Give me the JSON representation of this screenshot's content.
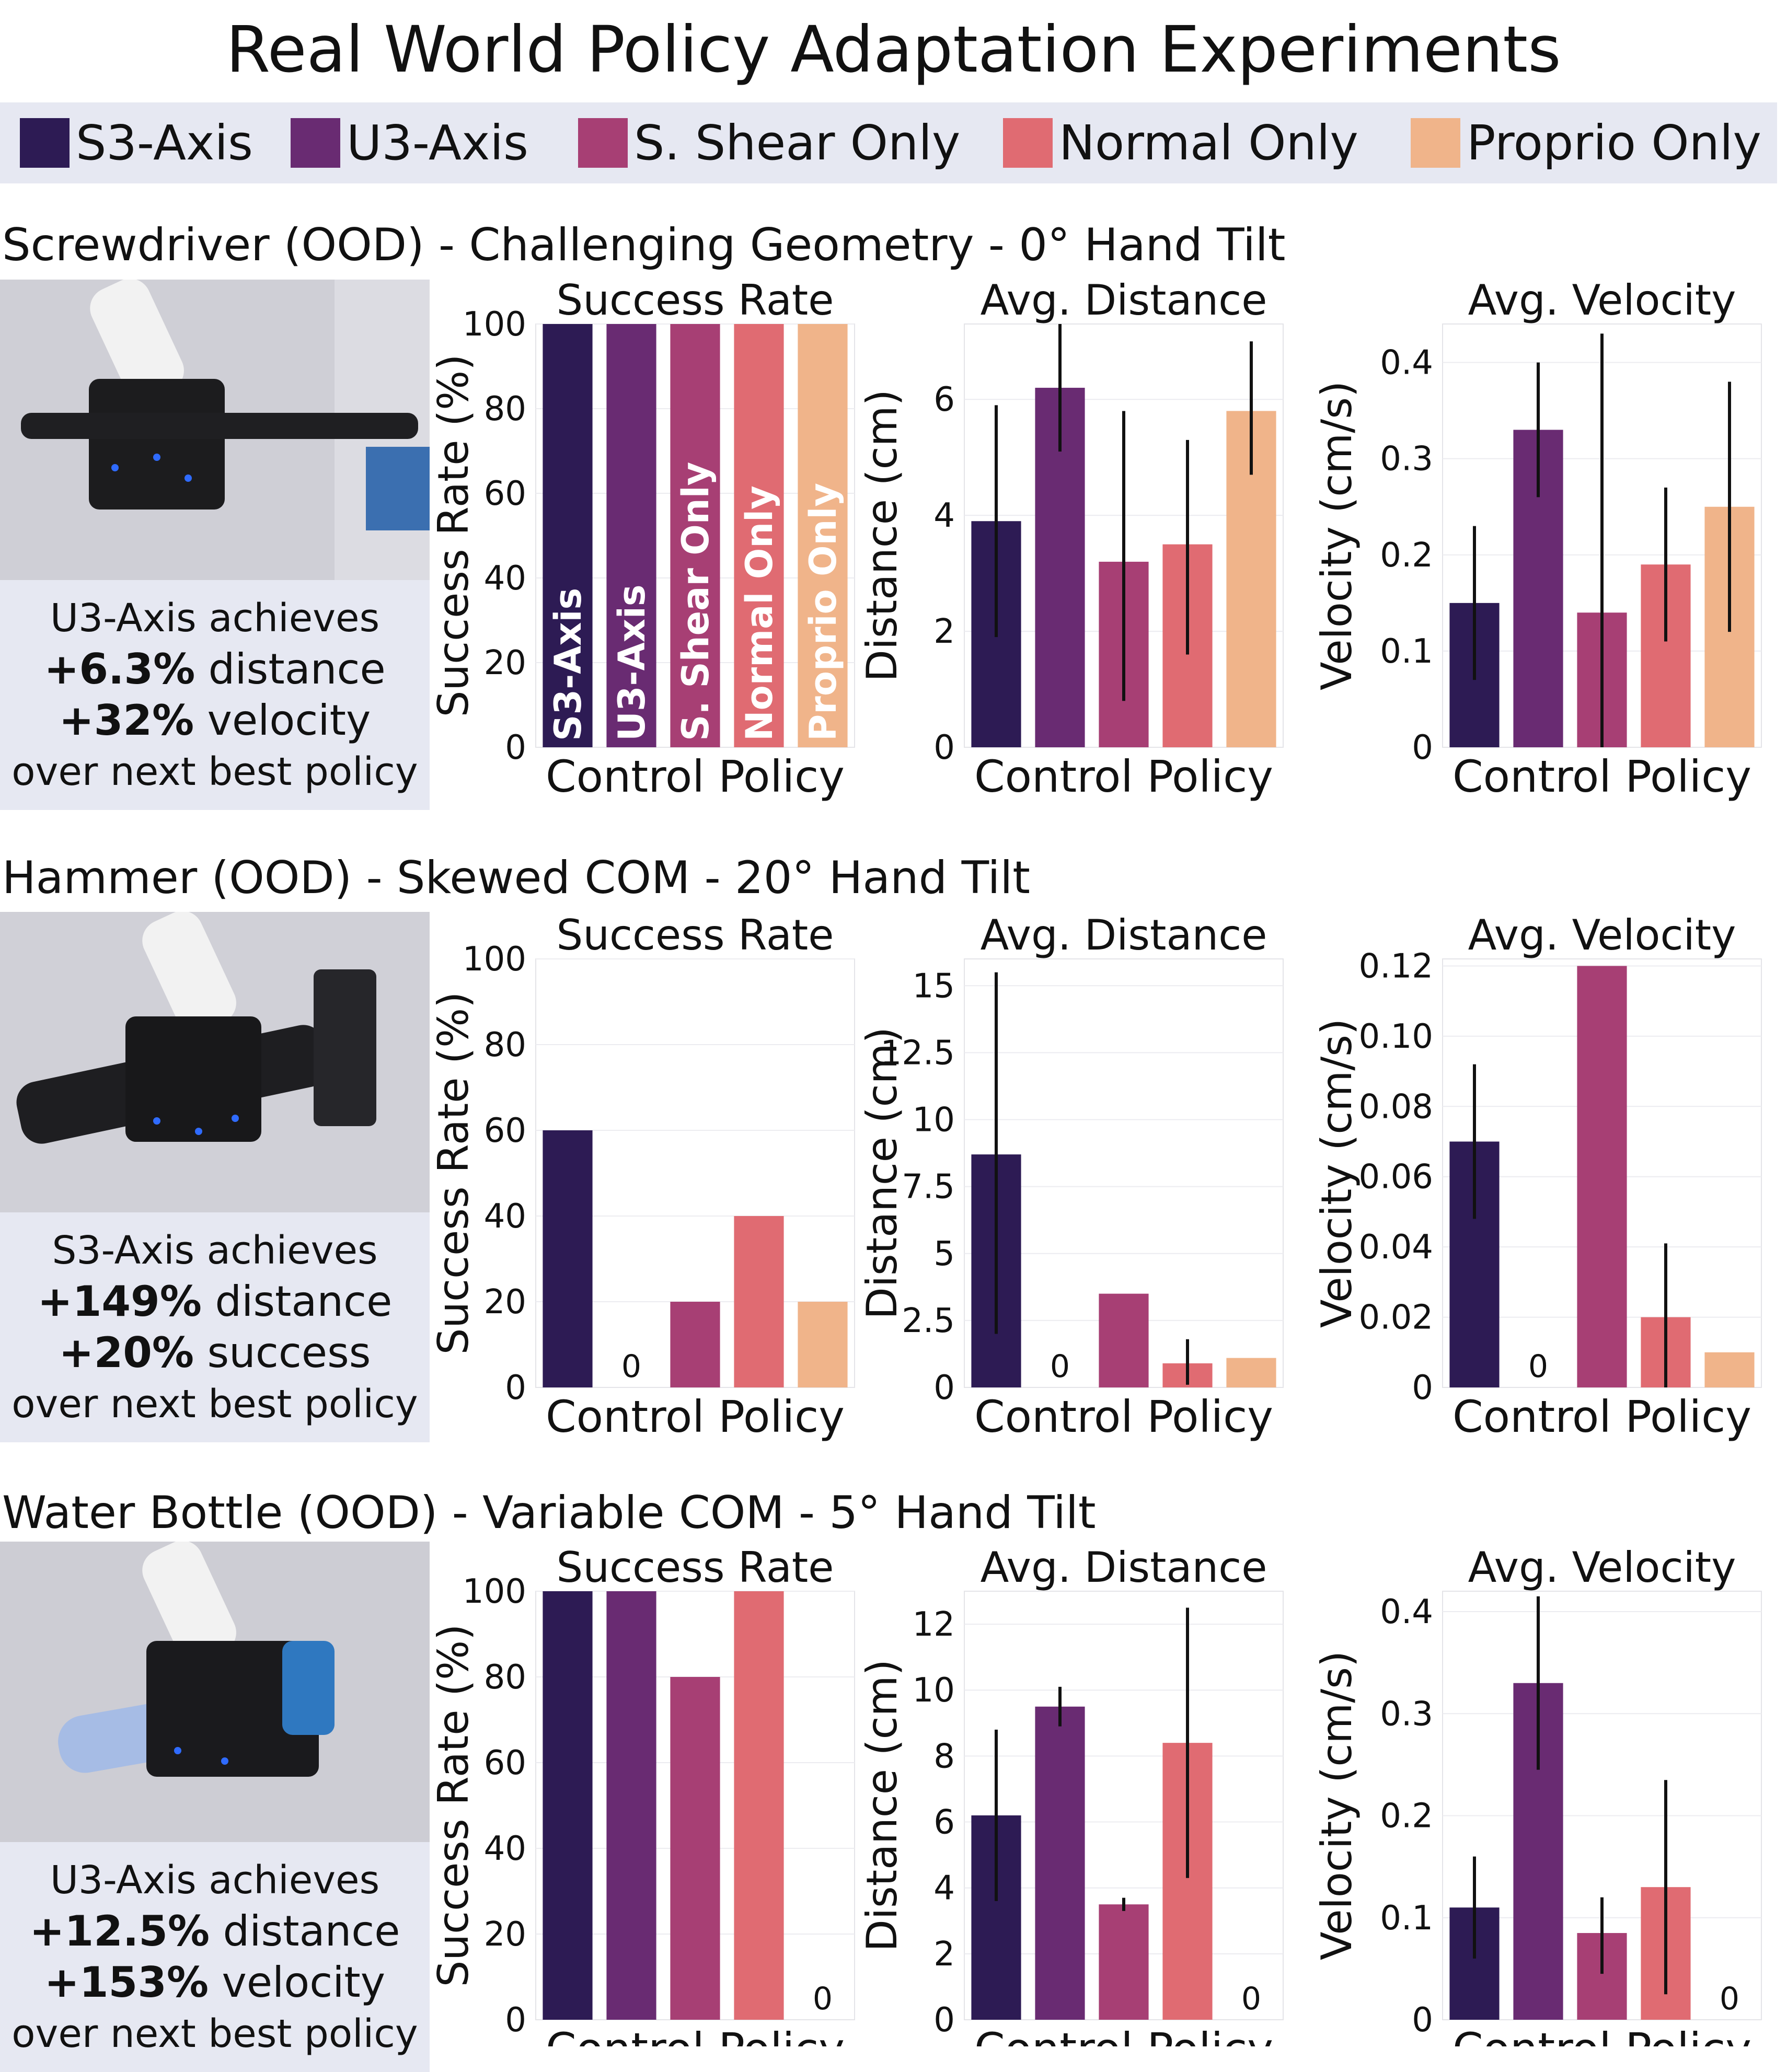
{
  "title": "Real World Policy Adaptation Experiments",
  "legend": [
    {
      "label": "S3-Axis",
      "color": "#2d1b54"
    },
    {
      "label": "U3-Axis",
      "color": "#692b72"
    },
    {
      "label": "S. Shear Only",
      "color": "#a73f74"
    },
    {
      "label": "Normal Only",
      "color": "#e06b72"
    },
    {
      "label": "Proprio Only",
      "color": "#f0b48a"
    }
  ],
  "sections": [
    {
      "title": "Screwdriver (OOD) - Challenging Geometry - 0° Hand Tilt",
      "caption": {
        "line1": "U3-Axis achieves",
        "line2_bold": "+6.3%",
        "line2_rest": "distance",
        "line3_bold": "+32%",
        "line3_rest": "velocity",
        "line4": "over next best policy"
      }
    },
    {
      "title": "Hammer (OOD) - Skewed COM - 20° Hand Tilt",
      "caption": {
        "line1": "S3-Axis achieves",
        "line2_bold": "+149%",
        "line2_rest": "distance",
        "line3_bold": "+20%",
        "line3_rest": "success",
        "line4": "over next best policy"
      }
    },
    {
      "title": "Water Bottle (OOD) - Variable COM - 5° Hand Tilt",
      "caption": {
        "line1": "U3-Axis achieves",
        "line2_bold": "+12.5%",
        "line2_rest": "distance",
        "line3_bold": "+153%",
        "line3_rest": "velocity",
        "line4": "over next best policy"
      }
    }
  ],
  "chart_data": [
    {
      "type": "bar",
      "title": "Success Rate",
      "xlabel": "Control Policy",
      "ylabel": "Success Rate (%)",
      "categories": [
        "S3-Axis",
        "U3-Axis",
        "S. Shear Only",
        "Normal Only",
        "Proprio Only"
      ],
      "values": [
        100,
        100,
        100,
        100,
        100
      ],
      "ylim": [
        0,
        100
      ],
      "ticks": [
        0,
        20,
        40,
        60,
        80,
        100
      ],
      "tick_labels": [
        "0",
        "20",
        "40",
        "60",
        "80",
        "100"
      ],
      "in_bar_labels": true
    },
    {
      "type": "bar",
      "title": "Avg. Distance",
      "xlabel": "Control Policy",
      "ylabel": "Distance (cm)",
      "categories": [
        "S3-Axis",
        "U3-Axis",
        "S. Shear Only",
        "Normal Only",
        "Proprio Only"
      ],
      "values": [
        3.9,
        6.2,
        3.2,
        3.5,
        5.8
      ],
      "error_low": [
        1.9,
        5.1,
        0.8,
        1.6,
        4.7
      ],
      "error_high": [
        5.9,
        7.3,
        5.8,
        5.3,
        7.0
      ],
      "ylim": [
        0,
        7.3
      ],
      "ticks": [
        0,
        2,
        4,
        6
      ],
      "tick_labels": [
        "0",
        "2",
        "4",
        "6"
      ]
    },
    {
      "type": "bar",
      "title": "Avg. Velocity",
      "xlabel": "Control Policy",
      "ylabel": "Velocity (cm/s)",
      "categories": [
        "S3-Axis",
        "U3-Axis",
        "S. Shear Only",
        "Normal Only",
        "Proprio Only"
      ],
      "values": [
        0.15,
        0.33,
        0.14,
        0.19,
        0.25
      ],
      "error_low": [
        0.07,
        0.26,
        0.0,
        0.11,
        0.12
      ],
      "error_high": [
        0.23,
        0.4,
        0.43,
        0.27,
        0.38
      ],
      "ylim": [
        0,
        0.44
      ],
      "ticks": [
        0,
        0.1,
        0.2,
        0.3,
        0.4
      ],
      "tick_labels": [
        "0",
        "0.1",
        "0.2",
        "0.3",
        "0.4"
      ]
    },
    {
      "type": "bar",
      "title": "Success Rate",
      "xlabel": "Control Policy",
      "ylabel": "Success Rate (%)",
      "categories": [
        "S3-Axis",
        "U3-Axis",
        "S. Shear Only",
        "Normal Only",
        "Proprio Only"
      ],
      "values": [
        60,
        0,
        20,
        40,
        20
      ],
      "zero_labels": [
        "0"
      ],
      "ylim": [
        0,
        100
      ],
      "ticks": [
        0,
        20,
        40,
        60,
        80,
        100
      ],
      "tick_labels": [
        "0",
        "20",
        "40",
        "60",
        "80",
        "100"
      ]
    },
    {
      "type": "bar",
      "title": "Avg. Distance",
      "xlabel": "Control Policy",
      "ylabel": "Distance (cm)",
      "categories": [
        "S3-Axis",
        "U3-Axis",
        "S. Shear Only",
        "Normal Only",
        "Proprio Only"
      ],
      "values": [
        8.7,
        0,
        3.5,
        0.9,
        1.1
      ],
      "error_low": [
        2.0,
        null,
        null,
        0.1,
        null
      ],
      "error_high": [
        15.5,
        null,
        null,
        1.8,
        null
      ],
      "zero_labels": [
        "0"
      ],
      "ylim": [
        0,
        16
      ],
      "ticks": [
        0,
        2.5,
        5,
        7.5,
        10,
        12.5,
        15
      ],
      "tick_labels": [
        "0",
        "2.5",
        "5",
        "7.5",
        "10",
        "12.5",
        "15"
      ]
    },
    {
      "type": "bar",
      "title": "Avg. Velocity",
      "xlabel": "Control Policy",
      "ylabel": "Velocity (cm/s)",
      "categories": [
        "S3-Axis",
        "U3-Axis",
        "S. Shear Only",
        "Normal Only",
        "Proprio Only"
      ],
      "values": [
        0.07,
        0,
        0.12,
        0.02,
        0.01
      ],
      "error_low": [
        0.048,
        null,
        null,
        0.0,
        null
      ],
      "error_high": [
        0.092,
        null,
        null,
        0.041,
        null
      ],
      "zero_labels": [
        "0"
      ],
      "ylim": [
        0,
        0.122
      ],
      "ticks": [
        0,
        0.02,
        0.04,
        0.06,
        0.08,
        0.1,
        0.12
      ],
      "tick_labels": [
        "0",
        "0.02",
        "0.04",
        "0.06",
        "0.08",
        "0.10",
        "0.12"
      ]
    },
    {
      "type": "bar",
      "title": "Success Rate",
      "xlabel": "Control Policy",
      "ylabel": "Success Rate (%)",
      "categories": [
        "S3-Axis",
        "U3-Axis",
        "S. Shear Only",
        "Normal Only",
        "Proprio Only"
      ],
      "values": [
        100,
        100,
        80,
        100,
        0
      ],
      "zero_labels": [
        "0"
      ],
      "ylim": [
        0,
        100
      ],
      "ticks": [
        0,
        20,
        40,
        60,
        80,
        100
      ],
      "tick_labels": [
        "0",
        "20",
        "40",
        "60",
        "80",
        "100"
      ]
    },
    {
      "type": "bar",
      "title": "Avg. Distance",
      "xlabel": "Control Policy",
      "ylabel": "Distance (cm)",
      "categories": [
        "S3-Axis",
        "U3-Axis",
        "S. Shear Only",
        "Normal Only",
        "Proprio Only"
      ],
      "values": [
        6.2,
        9.5,
        3.5,
        8.4,
        0
      ],
      "error_low": [
        3.6,
        8.9,
        3.3,
        4.3,
        null
      ],
      "error_high": [
        8.8,
        10.1,
        3.7,
        12.5,
        null
      ],
      "zero_labels": [
        "0"
      ],
      "ylim": [
        0,
        13
      ],
      "ticks": [
        0,
        2,
        4,
        6,
        8,
        10,
        12
      ],
      "tick_labels": [
        "0",
        "2",
        "4",
        "6",
        "8",
        "10",
        "12"
      ]
    },
    {
      "type": "bar",
      "title": "Avg. Velocity",
      "xlabel": "Control Policy",
      "ylabel": "Velocity (cm/s)",
      "categories": [
        "S3-Axis",
        "U3-Axis",
        "S. Shear Only",
        "Normal Only",
        "Proprio Only"
      ],
      "values": [
        0.11,
        0.33,
        0.085,
        0.13,
        0
      ],
      "error_low": [
        0.06,
        0.245,
        0.045,
        0.025,
        null
      ],
      "error_high": [
        0.16,
        0.415,
        0.12,
        0.235,
        null
      ],
      "zero_labels": [
        "0"
      ],
      "ylim": [
        0,
        0.42
      ],
      "ticks": [
        0,
        0.1,
        0.2,
        0.3,
        0.4
      ],
      "tick_labels": [
        "0",
        "0.1",
        "0.2",
        "0.3",
        "0.4"
      ]
    }
  ]
}
